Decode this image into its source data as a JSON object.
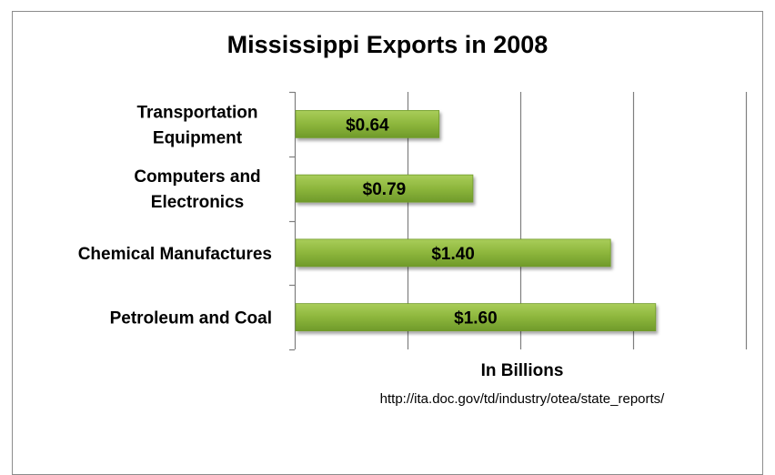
{
  "chart_data": {
    "type": "bar",
    "orientation": "horizontal",
    "title": "Mississippi Exports in 2008",
    "xlabel": "In Billions",
    "source_note": "http://ita.doc.gov/td/industry/otea/state_reports/",
    "categories": [
      [
        "Transportation",
        "Equipment"
      ],
      [
        "Computers and",
        "Electronics"
      ],
      [
        "Chemical Manufactures"
      ],
      [
        "Petroleum and Coal"
      ]
    ],
    "values": [
      0.64,
      0.79,
      1.4,
      1.6
    ],
    "data_labels": [
      "$0.64",
      "$0.79",
      "$1.40",
      "$1.60"
    ],
    "xlim": [
      0,
      2.0
    ],
    "grid_step": 0.5,
    "grid": true,
    "legend": "none",
    "bar_color": "#8db63c",
    "bar_edge_color": "#6f9a2a"
  }
}
